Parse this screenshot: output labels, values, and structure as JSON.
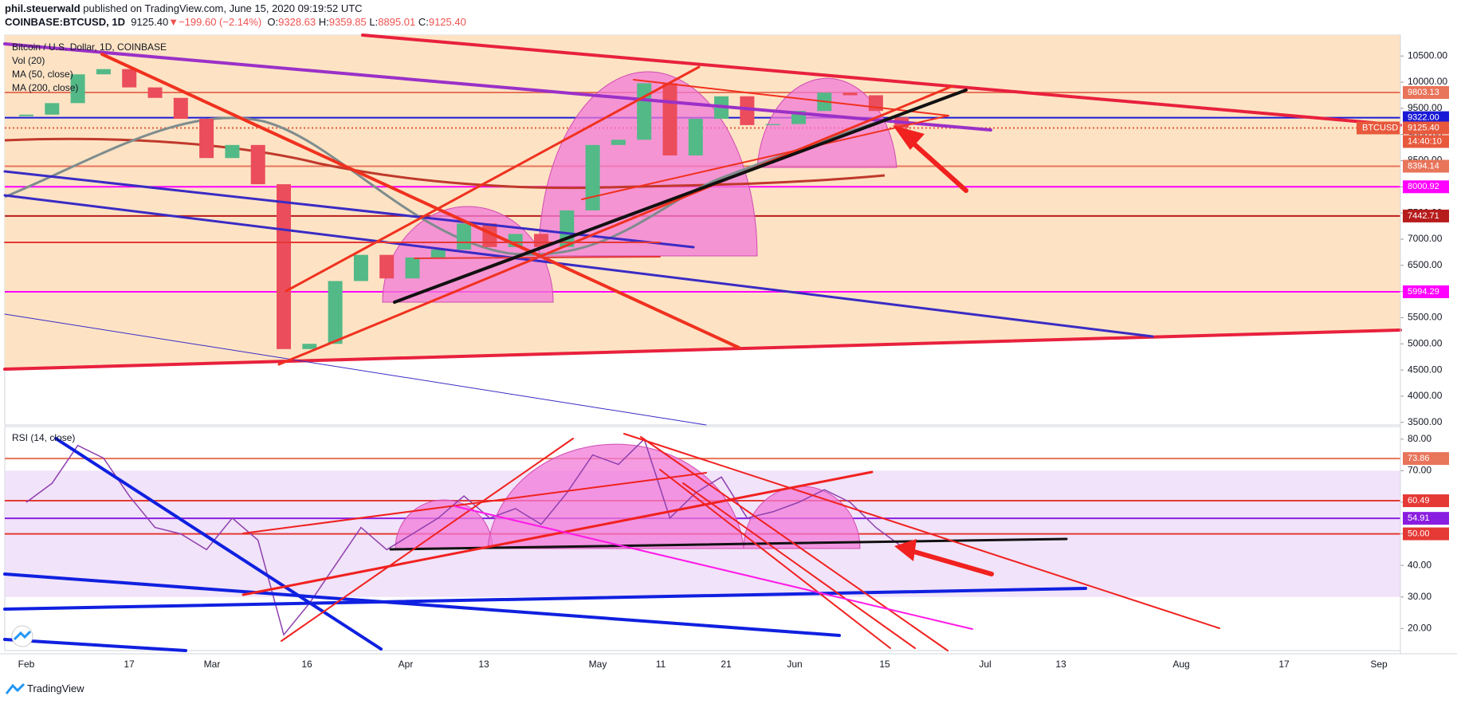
{
  "header": {
    "author": "phil.steuerwald",
    "published": "published on TradingView.com, June 15, 2020 09:19:52 UTC",
    "symbol": "COINBASE:BTCUSD, 1D",
    "last": "9125.40",
    "arrow": "▼",
    "change": "−199.60 (−2.14%)",
    "o_label": "O:",
    "o": "9328.63",
    "h_label": "H:",
    "h": "9359.85",
    "l_label": "L:",
    "l": "8895.01",
    "c_label": "C:",
    "c": "9125.40"
  },
  "legend": [
    "Bitcoin / U.S. Dollar, 1D, COINBASE",
    "Vol (20)",
    "MA (50, close)",
    "MA (200, close)"
  ],
  "rsi_title": "RSI (14, close)",
  "footer": "TradingView",
  "chart_data": [
    {
      "type": "candlestick",
      "ylim": [
        3450,
        10900
      ],
      "yticks": [
        {
          "value": 3500,
          "label": "3500.00"
        },
        {
          "value": 4000,
          "label": "4000.00"
        },
        {
          "value": 4500,
          "label": "4500.00"
        },
        {
          "value": 5000,
          "label": "5000.00"
        },
        {
          "value": 5500,
          "label": "5500.00"
        },
        {
          "value": 6000,
          "label": "6000.00"
        },
        {
          "value": 6500,
          "label": "6500.00"
        },
        {
          "value": 7000,
          "label": "7000.00"
        },
        {
          "value": 7500,
          "label": "7500.00"
        },
        {
          "value": 8000,
          "label": "8000.00"
        },
        {
          "value": 8500,
          "label": "8500.00"
        },
        {
          "value": 9000,
          "label": "9000.00"
        },
        {
          "value": 9500,
          "label": "9500.00"
        },
        {
          "value": 10000,
          "label": "10000.00"
        },
        {
          "value": 10500,
          "label": "10500.00"
        }
      ],
      "colors": {
        "up": "#53b987",
        "down": "#eb4d5c"
      },
      "open": [
        9350,
        9380,
        9600,
        10150,
        10250,
        9900,
        9700,
        9300,
        8550,
        8800,
        8050,
        4900,
        5000,
        6200,
        6700,
        6250,
        6650,
        6800,
        7300,
        6850,
        7100,
        6850,
        7550,
        8800,
        8900,
        9980,
        8600,
        9300,
        9730,
        9180,
        9200,
        9450,
        9800,
        9750,
        9328.63
      ],
      "close": [
        9380,
        9600,
        10150,
        10250,
        9900,
        9700,
        9300,
        8550,
        8800,
        8050,
        4900,
        5000,
        6200,
        6700,
        6250,
        6650,
        6800,
        7300,
        6850,
        7100,
        6850,
        7550,
        8800,
        8900,
        9980,
        8600,
        9300,
        9730,
        9180,
        9200,
        9450,
        9800,
        9750,
        9450,
        9125.4
      ],
      "levels": [
        {
          "value": 9803.13,
          "label": "9803.13",
          "color": "#e8745a"
        },
        {
          "value": 9322,
          "label": "9322.00",
          "color": "#1a1ad6"
        },
        {
          "value": 9125.4,
          "label": "9125.40",
          "color": "#e8593c"
        },
        {
          "value": 8394.14,
          "label": "8394.14",
          "color": "#e8745a"
        },
        {
          "value": 8000.92,
          "label": "8000.92",
          "color": "#ff00ff"
        },
        {
          "value": 7442.71,
          "label": "7442.71",
          "color": "#b71c1c"
        },
        {
          "value": 5994.29,
          "label": "5994.29",
          "color": "#ff00ff"
        }
      ],
      "symbol_tag": "BTCUSD",
      "countdown": "14:40:10",
      "xticks": [
        "Feb",
        "17",
        "Mar",
        "16",
        "Apr",
        "13",
        "May",
        "11",
        "21",
        "Jun",
        "15",
        "Jul",
        "13",
        "Aug",
        "17",
        "Sep"
      ]
    },
    {
      "type": "line",
      "color": "#8e3fae",
      "ylim": [
        13,
        84
      ],
      "yticks": [
        {
          "value": 20,
          "label": "20.00"
        },
        {
          "value": 30,
          "label": "30.00"
        },
        {
          "value": 40,
          "label": "40.00"
        },
        {
          "value": 50,
          "label": "50.00"
        },
        {
          "value": 60,
          "label": "60.00"
        },
        {
          "value": 70,
          "label": "70.00"
        },
        {
          "value": 80,
          "label": "80.00"
        }
      ],
      "values": [
        60,
        66,
        78,
        74,
        62,
        52,
        50,
        45,
        55,
        48,
        18,
        28,
        40,
        52,
        45,
        50,
        55,
        62,
        55,
        58,
        53,
        63,
        75,
        72,
        80,
        55,
        63,
        68,
        55,
        57,
        60,
        64,
        60,
        52,
        46
      ],
      "levels": [
        {
          "value": 73.86,
          "label": "73.86",
          "color": "#e8745a"
        },
        {
          "value": 60.49,
          "label": "60.49",
          "color": "#e53935"
        },
        {
          "value": 54.91,
          "label": "54.91",
          "color": "#8a1ee0"
        },
        {
          "value": 50,
          "label": "50.00",
          "color": "#e53935"
        }
      ]
    }
  ]
}
